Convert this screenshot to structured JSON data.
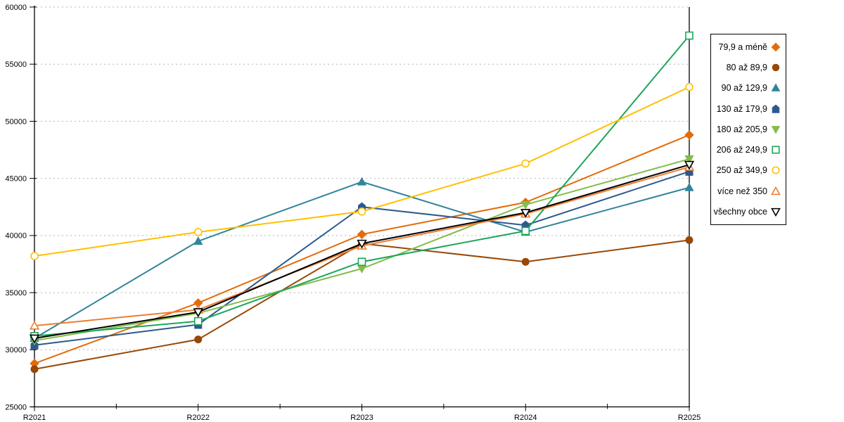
{
  "page": {
    "background": "#ffffff"
  },
  "chart_data": {
    "type": "line",
    "title": "",
    "categories": [
      "R2021",
      "R2022",
      "R2023",
      "R2024",
      "R2025"
    ],
    "series": [
      {
        "name": "79,9 a méně",
        "marker": "diamond",
        "style": "filled",
        "color": "#E36C0A",
        "values": [
          28800,
          34100,
          40100,
          42900,
          48800
        ]
      },
      {
        "name": "80 až 89,9",
        "marker": "circle",
        "style": "filled",
        "color": "#974806",
        "values": [
          28300,
          30900,
          39300,
          37700,
          39600
        ]
      },
      {
        "name": "90 až 129,9",
        "marker": "triangle-up",
        "style": "filled",
        "color": "#31859B",
        "values": [
          31000,
          39500,
          44700,
          40300,
          44200
        ]
      },
      {
        "name": "130 až 179,9",
        "marker": "pentagon",
        "style": "filled",
        "color": "#2C5A8C",
        "values": [
          30400,
          32200,
          42500,
          40900,
          45600
        ]
      },
      {
        "name": "180 až 205,9",
        "marker": "triangle-down",
        "style": "filled",
        "color": "#84BC49",
        "values": [
          30800,
          33200,
          37100,
          42700,
          46700
        ]
      },
      {
        "name": "206 až 249,9",
        "marker": "square",
        "style": "open",
        "color": "#1CA65B",
        "values": [
          31200,
          32500,
          37700,
          40400,
          57500
        ]
      },
      {
        "name": "250 až 349,9",
        "marker": "circle",
        "style": "open",
        "color": "#FFC000",
        "values": [
          38200,
          40300,
          42100,
          46300,
          53000
        ]
      },
      {
        "name": "více než 350",
        "marker": "triangle-up",
        "style": "open",
        "color": "#ED7D31",
        "values": [
          32100,
          33500,
          39100,
          41900,
          46000
        ]
      },
      {
        "name": "všechny obce",
        "marker": "triangle-down",
        "style": "open",
        "color": "#000000",
        "values": [
          31000,
          33300,
          39300,
          42000,
          46200
        ]
      }
    ],
    "y_axis": {
      "min": 25000,
      "max": 60000,
      "step": 5000,
      "tick_labels": [
        "25000",
        "30000",
        "35000",
        "40000",
        "45000",
        "50000",
        "55000",
        "60000"
      ]
    },
    "x_axis": {
      "tick_labels": [
        "R2021",
        "R2022",
        "R2023",
        "R2024",
        "R2025"
      ]
    },
    "grid": {
      "show": true,
      "style": "dashed",
      "color": "#B3B3B3"
    },
    "legend": {
      "position": "right",
      "border_color": "#000000"
    },
    "axis_color": "#000000"
  }
}
